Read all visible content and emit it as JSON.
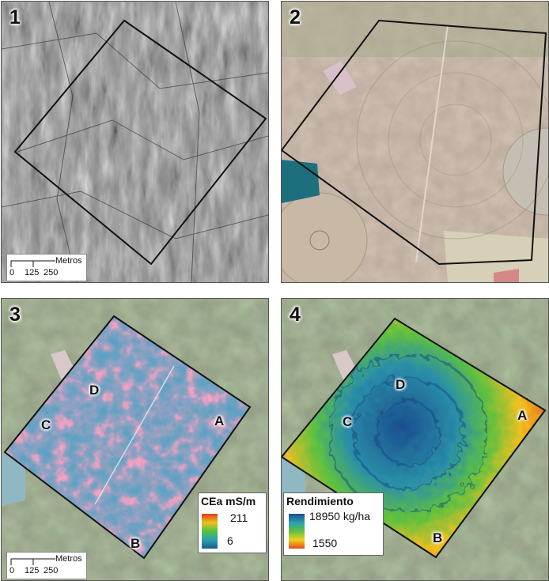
{
  "panels": [
    {
      "number": "1",
      "type": "aerial-photo-bw",
      "points": []
    },
    {
      "number": "2",
      "type": "aerial-photo-color",
      "points": []
    },
    {
      "number": "3",
      "type": "ce-map",
      "points": [
        "A",
        "B",
        "C",
        "D"
      ]
    },
    {
      "number": "4",
      "type": "yield-map",
      "points": [
        "A",
        "B",
        "C",
        "D"
      ]
    }
  ],
  "scalebar": {
    "unit": "Metros",
    "ticks": [
      "0",
      "125",
      "250"
    ]
  },
  "legend_ce": {
    "title": "CEa mS/m",
    "max": "211",
    "min": "6",
    "colors": [
      "#e03a1a",
      "#f0c020",
      "#52c040",
      "#2aa0b0",
      "#1a5c8a"
    ]
  },
  "legend_yield": {
    "title": "Rendimiento",
    "max": "18950 kg/ha",
    "min": "1550",
    "colors": [
      "#1a4d8f",
      "#2aa0b0",
      "#5ec040",
      "#f0d020",
      "#e54a18"
    ]
  }
}
